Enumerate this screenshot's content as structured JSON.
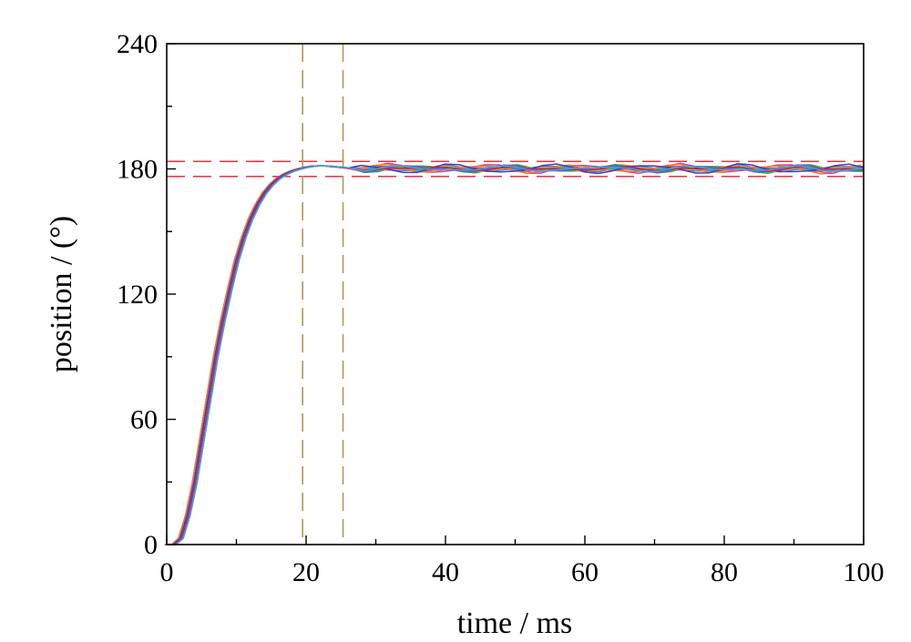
{
  "chart_data": {
    "type": "line",
    "title": "",
    "xlabel": "time / ms",
    "ylabel": "position / (°)",
    "xlim": [
      0,
      100
    ],
    "ylim": [
      0,
      240
    ],
    "x_ticks": [
      0,
      20,
      40,
      60,
      80,
      100
    ],
    "x_tick_labels": [
      "0",
      "20",
      "40",
      "60",
      "80",
      "100"
    ],
    "x_minor_step": 10,
    "y_ticks": [
      0,
      60,
      120,
      180,
      240
    ],
    "y_tick_labels": [
      "0",
      "60",
      "120",
      "180",
      "240"
    ],
    "y_minor_step": 30,
    "grid": false,
    "legend": "none",
    "reference_lines": {
      "horizontal": {
        "values": [
          176.4,
          183.6
        ],
        "color": "#e8323c",
        "style": "dashed"
      },
      "vertical": {
        "values": [
          19.5,
          25.3
        ],
        "color": "#a89a5a",
        "style": "dashed"
      }
    },
    "series_colors": [
      "#1f1f1f",
      "#e8323c",
      "#2f7fd8",
      "#1aa84a",
      "#d23ca8",
      "#1fb7c4",
      "#e6b81f",
      "#7a4fd0",
      "#f07f1f",
      "#3c3cc8",
      "#c41f5a",
      "#36a8e0"
    ],
    "series": [
      {
        "x": [
          0,
          1,
          2,
          3,
          4,
          5,
          6,
          7,
          8,
          9,
          10,
          11,
          12,
          13,
          14,
          15,
          16,
          17,
          18,
          19,
          20,
          21,
          22,
          23,
          24,
          25,
          26,
          28,
          30,
          32,
          34,
          36,
          38,
          40,
          42,
          44,
          46,
          48,
          50,
          52,
          54,
          56,
          58,
          60,
          62,
          64,
          66,
          68,
          70,
          72,
          74,
          76,
          78,
          80,
          82,
          84,
          86,
          88,
          90,
          92,
          94,
          96,
          98,
          100
        ],
        "y": [
          0,
          0,
          3,
          14,
          30,
          50,
          70,
          90,
          107,
          122,
          136,
          147,
          156,
          163,
          168.5,
          172.5,
          175.5,
          177.5,
          179,
          180,
          180.8,
          181.3,
          181.5,
          181.4,
          181.1,
          180.8,
          180.4,
          179.8,
          180.2,
          180.7,
          180.3,
          179.7,
          180.1,
          180.6,
          180.2,
          179.6,
          180.0,
          180.6,
          180.3,
          179.6,
          179.9,
          180.5,
          180.4,
          179.7,
          179.8,
          180.4,
          180.6,
          179.8,
          179.6,
          180.2,
          180.7,
          180.0,
          179.5,
          180.1,
          180.8,
          180.1,
          179.4,
          179.9,
          180.7,
          180.3,
          179.5,
          179.8,
          180.5,
          180.2
        ]
      }
    ]
  }
}
